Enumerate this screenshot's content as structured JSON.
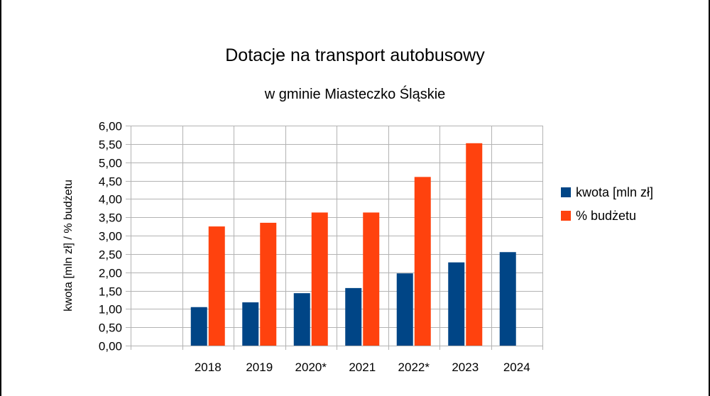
{
  "chart_data": {
    "type": "bar",
    "title": "Dotacje na transport autobusowy",
    "subtitle": "w gminie Miasteczko Śląskie",
    "xlabel": "",
    "ylabel": "kwota [mln zł] / % budżetu",
    "ylim": [
      0,
      6
    ],
    "ytick_labels": [
      "0,00",
      "0,50",
      "1,00",
      "1,50",
      "2,00",
      "2,50",
      "3,00",
      "3,50",
      "4,00",
      "4,50",
      "5,00",
      "5,50",
      "6,00"
    ],
    "categories": [
      "",
      "2018",
      "2019",
      "2020*",
      "2021",
      "2022*",
      "2023",
      "2024"
    ],
    "series": [
      {
        "name": "kwota [mln zł]",
        "color": "#004586",
        "values": [
          null,
          1.05,
          1.18,
          1.43,
          1.57,
          1.97,
          2.27,
          2.55
        ]
      },
      {
        "name": "% budżetu",
        "color": "#ff420e",
        "values": [
          null,
          3.25,
          3.35,
          3.63,
          3.63,
          4.6,
          5.52,
          null
        ]
      }
    ],
    "grid": true,
    "legend_position": "right"
  }
}
